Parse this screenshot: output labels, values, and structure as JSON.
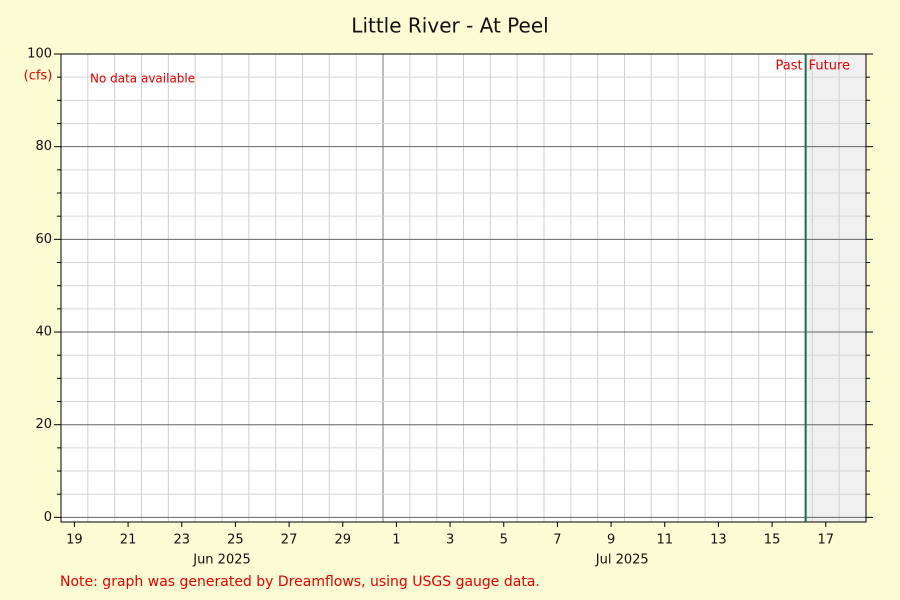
{
  "chart_data": {
    "type": "line",
    "title": "Little River - At Peel",
    "ylabel": "(cfs)",
    "x": [],
    "series": [],
    "annotations": {
      "no_data": "No data available",
      "past": "Past",
      "future": "Future"
    },
    "now": "2025-07-16T18:00",
    "note": "Note: graph was generated by Dreamflows, using USGS gauge data.",
    "xlim": [
      "2025-06-19T00:00",
      "2025-07-19T00:00"
    ],
    "xticks": [
      {
        "value": "2025-06-19T12:00",
        "label": "19"
      },
      {
        "value": "2025-06-21T12:00",
        "label": "21"
      },
      {
        "value": "2025-06-23T12:00",
        "label": "23"
      },
      {
        "value": "2025-06-25T12:00",
        "label": "25"
      },
      {
        "value": "2025-06-27T12:00",
        "label": "27"
      },
      {
        "value": "2025-06-29T12:00",
        "label": "29"
      },
      {
        "value": "2025-07-01T12:00",
        "label": "1"
      },
      {
        "value": "2025-07-03T12:00",
        "label": "3"
      },
      {
        "value": "2025-07-05T12:00",
        "label": "5"
      },
      {
        "value": "2025-07-07T12:00",
        "label": "7"
      },
      {
        "value": "2025-07-09T12:00",
        "label": "9"
      },
      {
        "value": "2025-07-11T12:00",
        "label": "11"
      },
      {
        "value": "2025-07-13T12:00",
        "label": "13"
      },
      {
        "value": "2025-07-15T12:00",
        "label": "15"
      },
      {
        "value": "2025-07-17T12:00",
        "label": "17"
      }
    ],
    "month_labels": [
      {
        "value": "2025-06-25T00:00",
        "label": "Jun 2025"
      },
      {
        "value": "2025-07-09T22:00",
        "label": "Jul 2025"
      }
    ],
    "ylim": [
      -1,
      100
    ],
    "yticks": [
      0,
      20,
      40,
      60,
      80,
      100
    ],
    "grid": true,
    "future_shade": "#f0f0f0",
    "now_color": "#1f6b4e"
  }
}
